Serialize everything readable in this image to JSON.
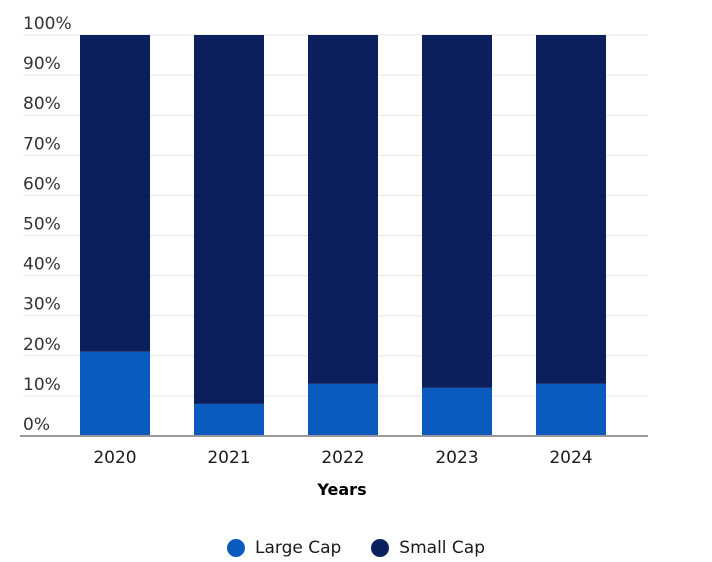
{
  "chart_data": {
    "type": "bar",
    "stacked": true,
    "categories": [
      "2020",
      "2021",
      "2022",
      "2023",
      "2024"
    ],
    "series": [
      {
        "name": "Large Cap",
        "color": "#0a5bbd",
        "values": [
          21,
          8,
          13,
          12,
          13
        ]
      },
      {
        "name": "Small Cap",
        "color": "#0b1f5c",
        "values": [
          79,
          92,
          87,
          88,
          87
        ]
      }
    ],
    "xlabel": "Years",
    "ylabel": "",
    "ylim": [
      0,
      100
    ],
    "yticks": [
      "0%",
      "10%",
      "20%",
      "30%",
      "40%",
      "50%",
      "60%",
      "70%",
      "80%",
      "90%",
      "100%"
    ],
    "grid": true,
    "legend_position": "bottom"
  }
}
